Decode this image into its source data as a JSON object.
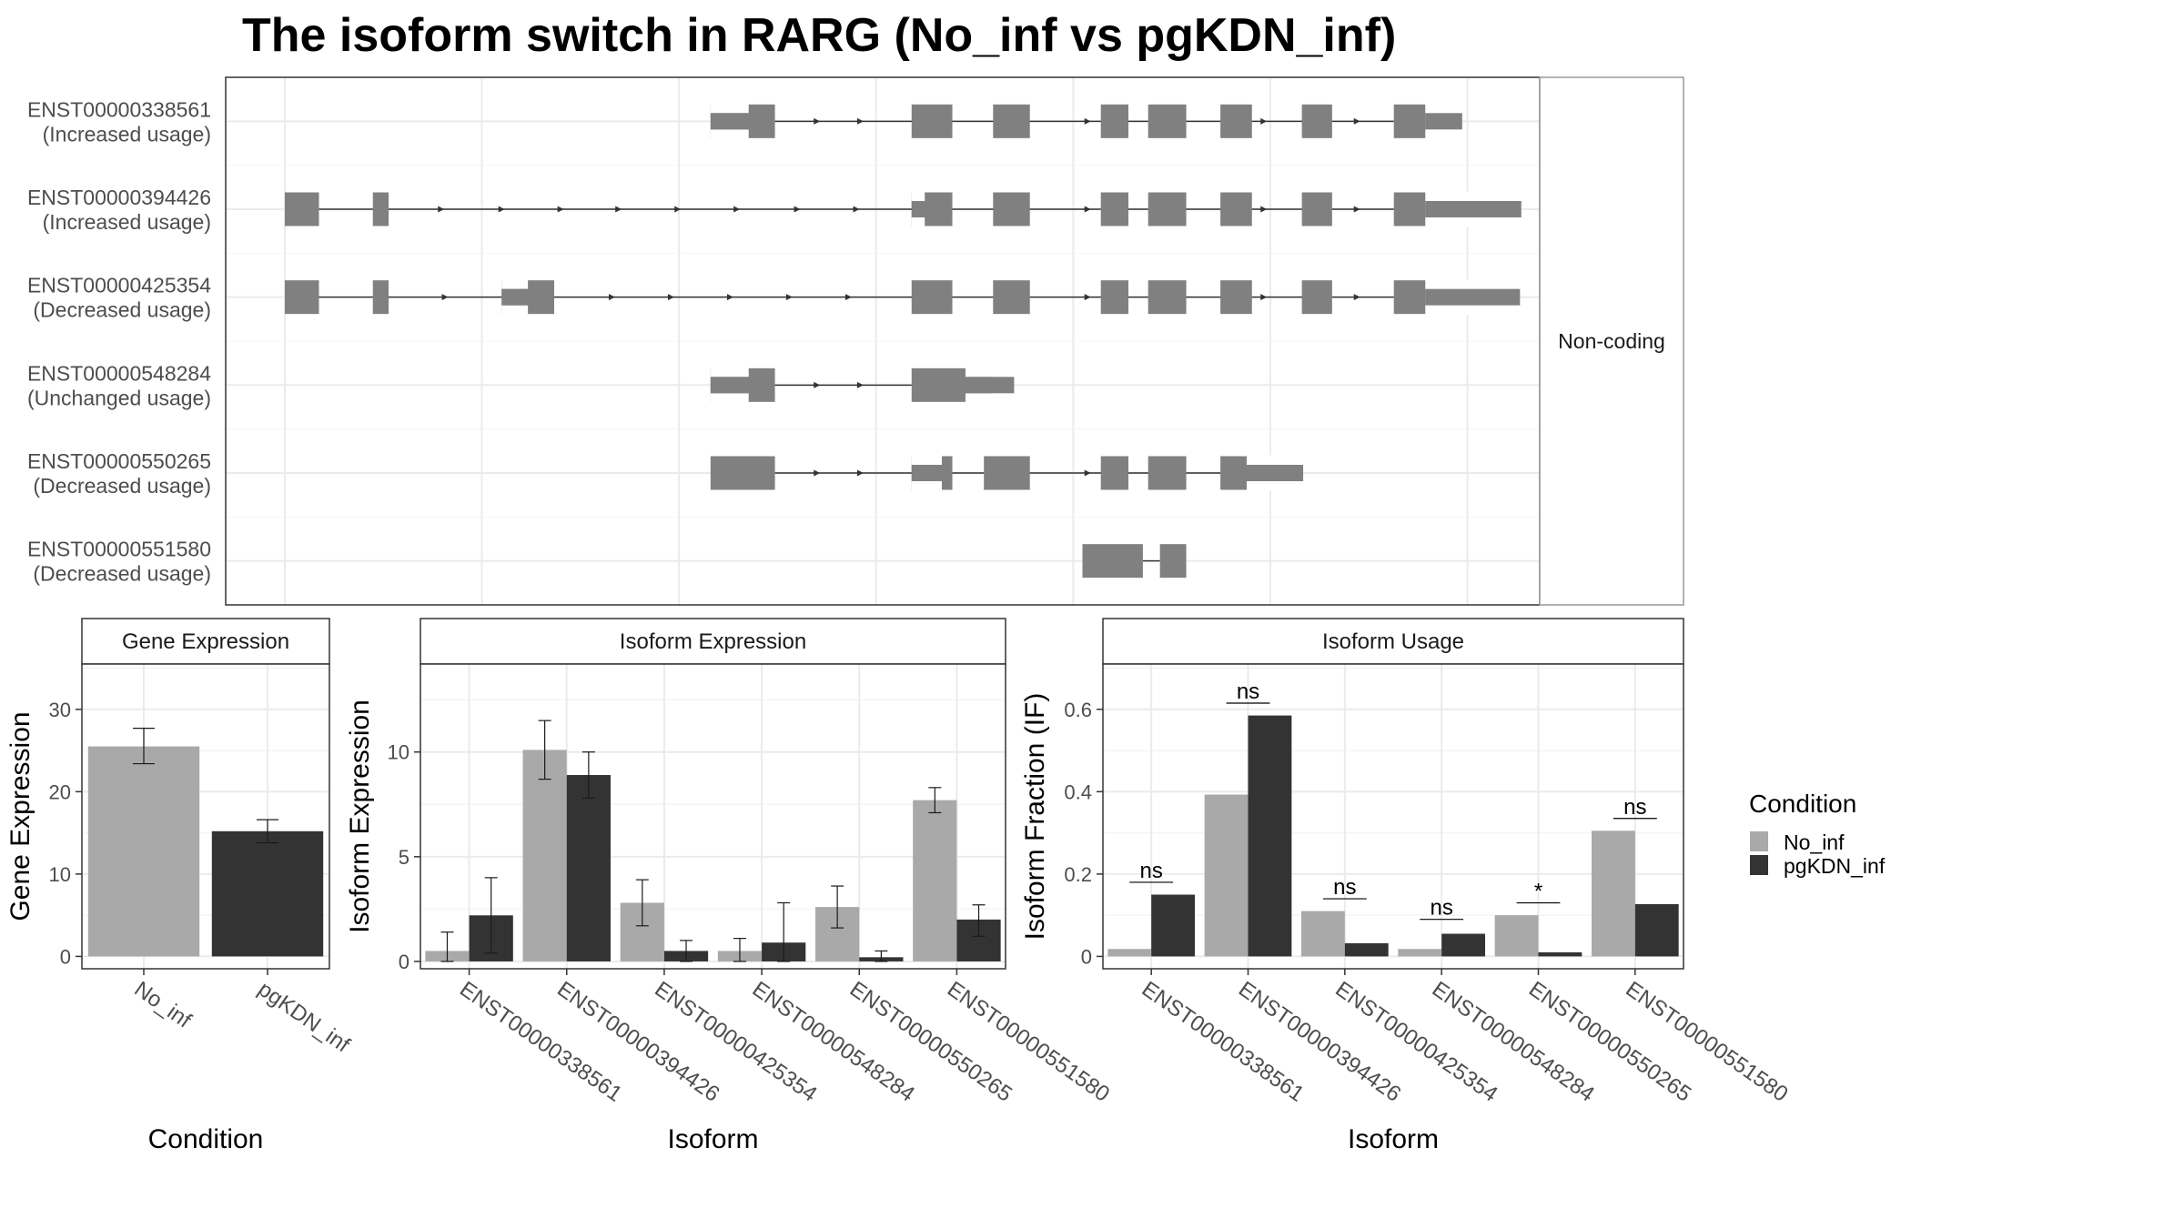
{
  "title": "The isoform switch in RARG (No_inf vs pgKDN_inf)",
  "colors": {
    "no_inf": "#a9a9a9",
    "pgkdn_inf": "#333333",
    "exon": "#808080",
    "grid": "#ebebeb"
  },
  "chart_data": [
    {
      "type": "transcript_structure",
      "facet_label": "Non-coding",
      "transcripts": [
        {
          "id": "ENST00000338561",
          "label": "(Increased usage)",
          "x_range": [
            0,
            1
          ],
          "exons": [
            [
              0.369,
              0.418
            ],
            [
              0.522,
              0.553
            ],
            [
              0.584,
              0.612
            ],
            [
              0.666,
              0.687
            ],
            [
              0.702,
              0.731
            ],
            [
              0.757,
              0.781
            ],
            [
              0.819,
              0.842
            ],
            [
              0.889,
              0.913
            ]
          ],
          "thin": [
            [
              0.369,
              0.398
            ],
            [
              0.913,
              0.941
            ]
          ],
          "arrows": [
            0.451,
            0.484,
            0.657,
            0.791,
            0.862
          ]
        },
        {
          "id": "ENST00000394426",
          "label": "(Increased usage)",
          "x_range": [
            0,
            1
          ],
          "exons": [
            [
              0.045,
              0.071
            ],
            [
              0.112,
              0.124
            ],
            [
              0.522,
              0.553
            ],
            [
              0.584,
              0.612
            ],
            [
              0.666,
              0.687
            ],
            [
              0.702,
              0.731
            ],
            [
              0.757,
              0.781
            ],
            [
              0.819,
              0.842
            ],
            [
              0.889,
              0.913
            ]
          ],
          "thin": [
            [
              0.522,
              0.532
            ],
            [
              0.913,
              0.986
            ]
          ],
          "arrows": [
            0.165,
            0.211,
            0.256,
            0.3,
            0.345,
            0.39,
            0.436,
            0.481,
            0.657,
            0.791,
            0.862
          ]
        },
        {
          "id": "ENST00000425354",
          "label": "(Decreased usage)",
          "x_range": [
            0,
            1
          ],
          "exons": [
            [
              0.045,
              0.071
            ],
            [
              0.112,
              0.124
            ],
            [
              0.21,
              0.25
            ],
            [
              0.522,
              0.553
            ],
            [
              0.584,
              0.612
            ],
            [
              0.666,
              0.687
            ],
            [
              0.702,
              0.731
            ],
            [
              0.757,
              0.781
            ],
            [
              0.819,
              0.842
            ],
            [
              0.889,
              0.913
            ]
          ],
          "thin": [
            [
              0.21,
              0.23
            ],
            [
              0.913,
              0.985
            ]
          ],
          "arrows": [
            0.168,
            0.295,
            0.34,
            0.385,
            0.43,
            0.475,
            0.657,
            0.791,
            0.862
          ]
        },
        {
          "id": "ENST00000548284",
          "label": "(Unchanged usage)",
          "x_range": [
            0,
            1
          ],
          "exons": [
            [
              0.369,
              0.418
            ],
            [
              0.522,
              0.583
            ]
          ],
          "thin": [
            [
              0.369,
              0.398
            ],
            [
              0.563,
              0.6
            ]
          ],
          "arrows": [
            0.451,
            0.484
          ]
        },
        {
          "id": "ENST00000550265",
          "label": "(Decreased usage)",
          "x_range": [
            0,
            1
          ],
          "exons": [
            [
              0.369,
              0.418
            ],
            [
              0.522,
              0.553
            ],
            [
              0.577,
              0.612
            ],
            [
              0.666,
              0.687
            ],
            [
              0.702,
              0.731
            ],
            [
              0.757,
              0.798
            ]
          ],
          "thin": [
            [
              0.522,
              0.545
            ],
            [
              0.777,
              0.82
            ]
          ],
          "arrows": [
            0.451,
            0.484,
            0.657
          ]
        },
        {
          "id": "ENST00000551580",
          "label": "(Decreased usage)",
          "x_range": [
            0,
            1
          ],
          "exons": [
            [
              0.652,
              0.698
            ],
            [
              0.711,
              0.731
            ]
          ],
          "thin": [],
          "arrows": []
        }
      ]
    },
    {
      "type": "bar",
      "facet_label": "Gene Expression",
      "xlabel": "Condition",
      "ylabel": "Gene Expression",
      "categories": [
        "No_inf",
        "pgKDN_inf"
      ],
      "values": [
        25.5,
        15.2
      ],
      "errors": [
        [
          23.4,
          27.7
        ],
        [
          13.8,
          16.6
        ]
      ],
      "yticks": [
        0,
        10,
        20,
        30
      ],
      "ylim": [
        -1.5,
        35.5
      ],
      "grid": true
    },
    {
      "type": "bar",
      "facet_label": "Isoform Expression",
      "xlabel": "Isoform",
      "ylabel": "Isoform Expression",
      "categories": [
        "ENST00000338561",
        "ENST00000394426",
        "ENST00000425354",
        "ENST00000548284",
        "ENST00000550265",
        "ENST00000551580"
      ],
      "series": [
        {
          "name": "No_inf",
          "values": [
            0.5,
            10.1,
            2.8,
            0.5,
            2.6,
            7.7
          ],
          "errors": [
            [
              0.0,
              1.4
            ],
            [
              8.7,
              11.5
            ],
            [
              1.7,
              3.9
            ],
            [
              0.0,
              1.1
            ],
            [
              1.6,
              3.6
            ],
            [
              7.1,
              8.3
            ]
          ]
        },
        {
          "name": "pgKDN_inf",
          "values": [
            2.2,
            8.9,
            0.5,
            0.9,
            0.2,
            2.0
          ],
          "errors": [
            [
              0.4,
              4.0
            ],
            [
              7.8,
              10.0
            ],
            [
              0.0,
              1.0
            ],
            [
              0.0,
              2.8
            ],
            [
              0.0,
              0.5
            ],
            [
              1.2,
              2.7
            ]
          ]
        }
      ],
      "yticks": [
        0,
        5,
        10
      ],
      "ylim": [
        -0.35,
        14.2
      ],
      "grid": true
    },
    {
      "type": "bar",
      "facet_label": "Isoform Usage",
      "xlabel": "Isoform",
      "ylabel": "Isoform Fraction (IF)",
      "categories": [
        "ENST00000338561",
        "ENST00000394426",
        "ENST00000425354",
        "ENST00000548284",
        "ENST00000550265",
        "ENST00000551580"
      ],
      "series": [
        {
          "name": "No_inf",
          "values": [
            0.018,
            0.393,
            0.11,
            0.018,
            0.1,
            0.305
          ]
        },
        {
          "name": "pgKDN_inf",
          "values": [
            0.15,
            0.585,
            0.032,
            0.055,
            0.01,
            0.127
          ]
        }
      ],
      "significance": [
        "ns",
        "ns",
        "ns",
        "ns",
        "*",
        "ns"
      ],
      "sig_level": [
        0.18,
        0.615,
        0.14,
        0.09,
        0.13,
        0.335
      ],
      "yticks": [
        0.0,
        0.2,
        0.4,
        0.6
      ],
      "ylim": [
        -0.03,
        0.71
      ],
      "grid": true
    }
  ],
  "legend": {
    "title": "Condition",
    "position": "right",
    "entries": [
      {
        "name": "No_inf",
        "color": "#a9a9a9"
      },
      {
        "name": "pgKDN_inf",
        "color": "#333333"
      }
    ]
  }
}
